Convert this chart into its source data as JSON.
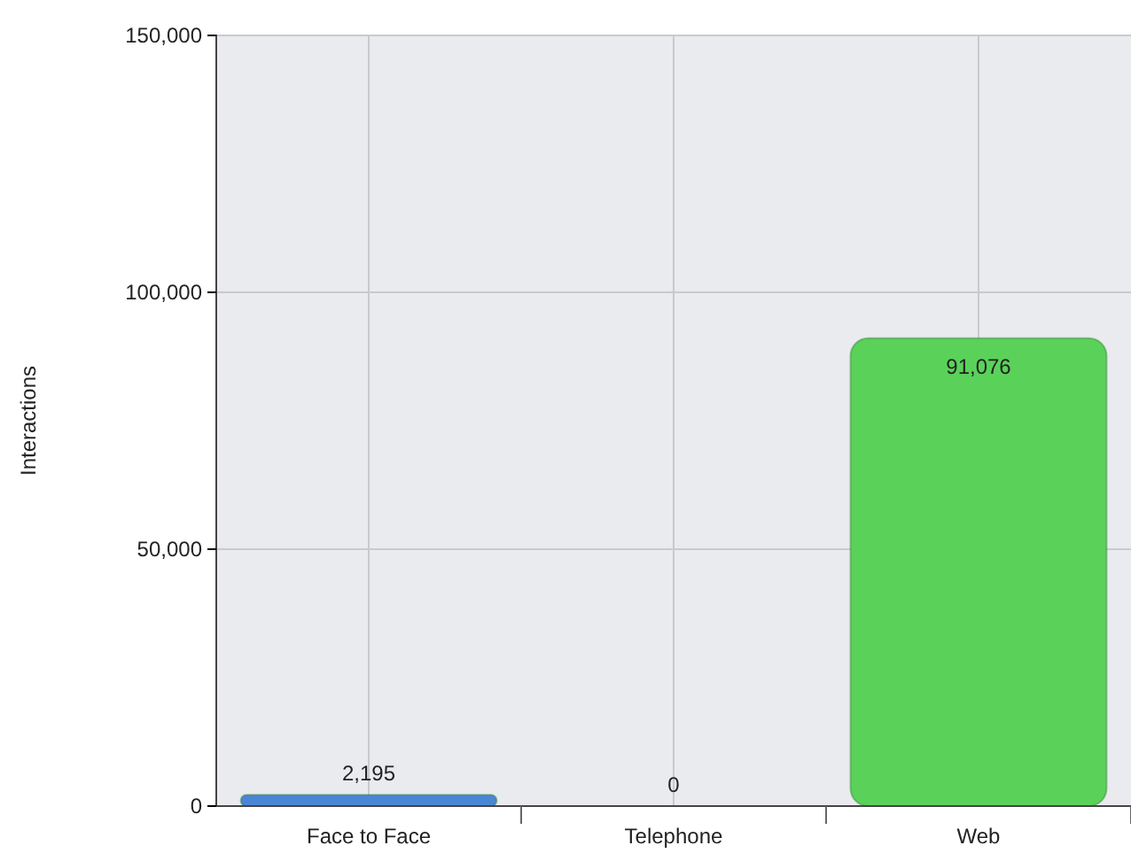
{
  "chart_data": {
    "type": "bar",
    "ylabel": "Interactions",
    "categories": [
      "Face to Face",
      "Telephone",
      "Web"
    ],
    "values": [
      2195,
      0,
      91076
    ],
    "colors": [
      "#4a86d6",
      "#4a86d6",
      "#5ad25a"
    ],
    "ylim": [
      0,
      150000
    ],
    "yticks": [
      {
        "value": 0,
        "label": "0"
      },
      {
        "value": 50000,
        "label": "50,000"
      },
      {
        "value": 100000,
        "label": "100,000"
      },
      {
        "value": 150000,
        "label": "150,000"
      }
    ],
    "grid": true,
    "value_labels": [
      "2,195",
      "0",
      "91,076"
    ]
  }
}
